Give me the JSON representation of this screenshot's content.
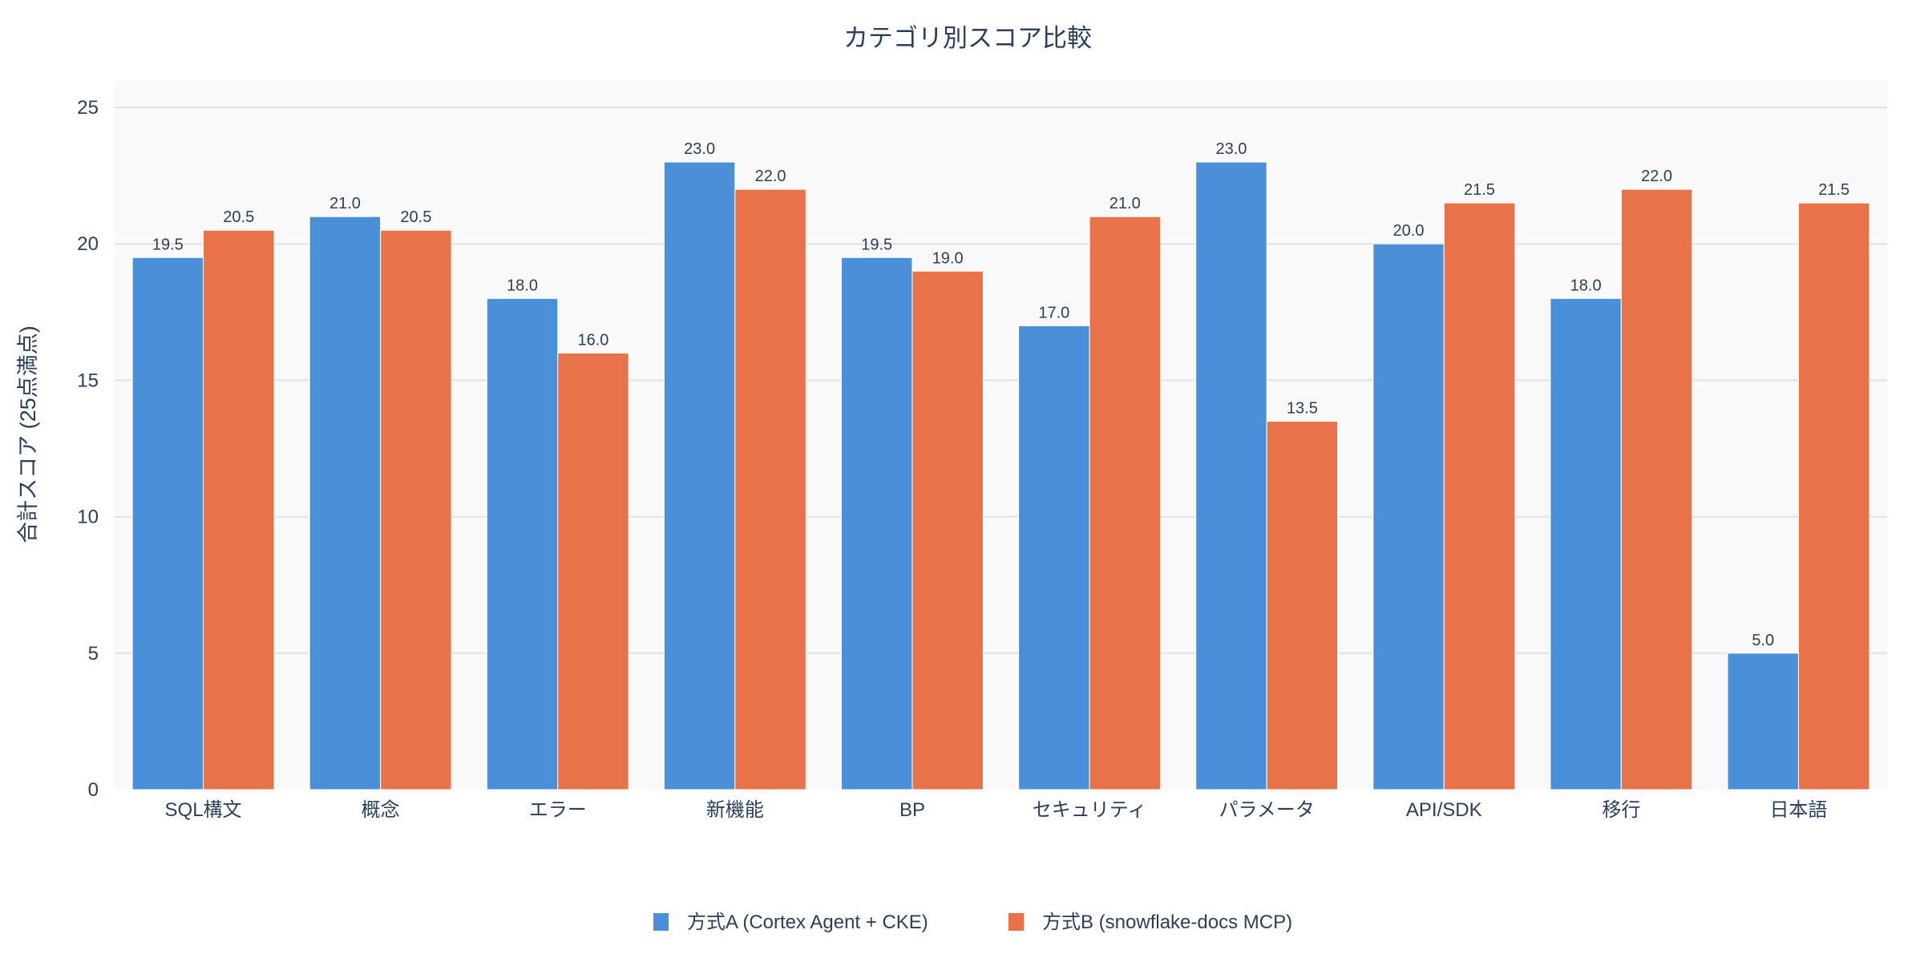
{
  "chart_data": {
    "type": "bar",
    "title": "カテゴリ別スコア比較",
    "xlabel": "",
    "ylabel": "合計スコア (25点満点)",
    "ylim": [
      0,
      26
    ],
    "yticks": [
      0,
      5,
      10,
      15,
      20,
      25
    ],
    "grid": true,
    "legend_position": "bottom",
    "categories": [
      "SQL構文",
      "概念",
      "エラー",
      "新機能",
      "BP",
      "セキュリティ",
      "パラメータ",
      "API/SDK",
      "移行",
      "日本語"
    ],
    "series": [
      {
        "name": "方式A (Cortex Agent + CKE)",
        "color": "#4a90d9",
        "values": [
          19.5,
          21.0,
          18.0,
          23.0,
          19.5,
          17.0,
          23.0,
          20.0,
          18.0,
          5.0
        ]
      },
      {
        "name": "方式B (snowflake-docs MCP)",
        "color": "#e8734a",
        "values": [
          20.5,
          20.5,
          16.0,
          22.0,
          19.0,
          21.0,
          13.5,
          21.5,
          22.0,
          21.5
        ]
      }
    ],
    "plot_background": "#f9f9f9"
  }
}
